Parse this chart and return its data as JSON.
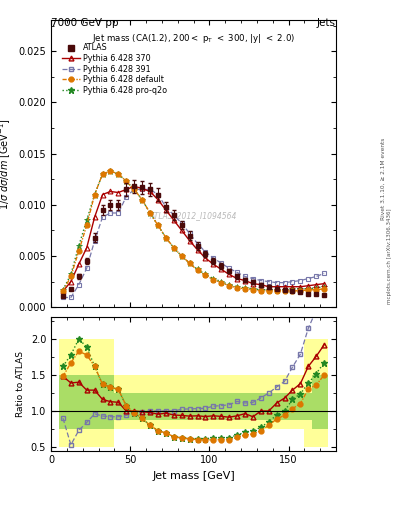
{
  "title_top_left": "7000 GeV pp",
  "title_top_right": "Jets",
  "subtitle": "Jet mass (CA(1.2), 200< p_{T} < 300, |y| < 2.0)",
  "watermark": "ATLAS_2012_I1094564",
  "ylabel_main": "1/σ dσ/dm [GeV⁻¹]",
  "ylabel_ratio": "Ratio to ATLAS",
  "xlabel": "Jet mass [GeV]",
  "x_data": [
    7.5,
    12.5,
    17.5,
    22.5,
    27.5,
    32.5,
    37.5,
    42.5,
    47.5,
    52.5,
    57.5,
    62.5,
    67.5,
    72.5,
    77.5,
    82.5,
    87.5,
    92.5,
    97.5,
    102.5,
    107.5,
    112.5,
    117.5,
    122.5,
    127.5,
    132.5,
    137.5,
    142.5,
    147.5,
    152.5,
    157.5,
    162.5,
    167.5,
    172.5
  ],
  "atlas_y": [
    0.00105,
    0.0018,
    0.003,
    0.0045,
    0.0068,
    0.0095,
    0.01,
    0.01,
    0.0115,
    0.0118,
    0.0117,
    0.0115,
    0.011,
    0.0098,
    0.009,
    0.008,
    0.007,
    0.006,
    0.0052,
    0.0045,
    0.004,
    0.0035,
    0.003,
    0.0027,
    0.0025,
    0.0022,
    0.002,
    0.0018,
    0.0017,
    0.00155,
    0.00145,
    0.0013,
    0.00125,
    0.0012
  ],
  "atlas_yerr_lo": [
    0.0001,
    0.0001,
    0.0002,
    0.0003,
    0.0004,
    0.0005,
    0.0005,
    0.0005,
    0.0006,
    0.0006,
    0.0006,
    0.0006,
    0.0006,
    0.0005,
    0.0005,
    0.0004,
    0.0004,
    0.0004,
    0.0003,
    0.0003,
    0.0003,
    0.0002,
    0.0002,
    0.0002,
    0.0002,
    0.0002,
    0.0002,
    0.0001,
    0.0001,
    0.0001,
    0.0001,
    0.0001,
    0.0001,
    0.0001
  ],
  "atlas_yerr_hi": [
    0.0001,
    0.0001,
    0.0002,
    0.0003,
    0.0004,
    0.0005,
    0.0005,
    0.0005,
    0.0006,
    0.0006,
    0.0006,
    0.0006,
    0.0006,
    0.0005,
    0.0005,
    0.0004,
    0.0004,
    0.0004,
    0.0003,
    0.0003,
    0.0003,
    0.0002,
    0.0002,
    0.0002,
    0.0002,
    0.0002,
    0.0002,
    0.0001,
    0.0001,
    0.0001,
    0.0001,
    0.0001,
    0.0001,
    0.0001
  ],
  "py370_y": [
    0.00155,
    0.0025,
    0.0042,
    0.0058,
    0.0088,
    0.011,
    0.0113,
    0.0112,
    0.0115,
    0.0118,
    0.0116,
    0.0113,
    0.0105,
    0.0095,
    0.0085,
    0.0075,
    0.0065,
    0.0056,
    0.0048,
    0.0042,
    0.0037,
    0.0032,
    0.0028,
    0.0026,
    0.0023,
    0.0022,
    0.002,
    0.002,
    0.002,
    0.002,
    0.002,
    0.0021,
    0.0022,
    0.0023
  ],
  "py391_y": [
    0.00095,
    0.00095,
    0.0022,
    0.0038,
    0.0065,
    0.0088,
    0.0092,
    0.0092,
    0.0108,
    0.0115,
    0.0115,
    0.0115,
    0.011,
    0.0098,
    0.009,
    0.0082,
    0.0072,
    0.0062,
    0.0054,
    0.0048,
    0.0043,
    0.0038,
    0.0034,
    0.003,
    0.0028,
    0.0026,
    0.0025,
    0.0024,
    0.0024,
    0.0025,
    0.0026,
    0.0028,
    0.003,
    0.0033
  ],
  "pydef_y": [
    0.00155,
    0.003,
    0.0055,
    0.008,
    0.011,
    0.013,
    0.0133,
    0.013,
    0.0123,
    0.0115,
    0.0105,
    0.0092,
    0.008,
    0.0068,
    0.0058,
    0.005,
    0.0043,
    0.0036,
    0.0031,
    0.0027,
    0.0024,
    0.0021,
    0.0019,
    0.0018,
    0.0017,
    0.0016,
    0.0016,
    0.0016,
    0.0016,
    0.0016,
    0.0016,
    0.0017,
    0.0017,
    0.0018
  ],
  "pyproq2o_y": [
    0.0017,
    0.0032,
    0.006,
    0.0085,
    0.011,
    0.013,
    0.0133,
    0.013,
    0.0123,
    0.0115,
    0.0105,
    0.0092,
    0.008,
    0.0068,
    0.0058,
    0.005,
    0.0043,
    0.0037,
    0.0032,
    0.0028,
    0.0025,
    0.0022,
    0.002,
    0.0019,
    0.0018,
    0.0017,
    0.0017,
    0.0017,
    0.0017,
    0.0018,
    0.0018,
    0.0018,
    0.0019,
    0.002
  ],
  "atlas_color": "#4a0a0a",
  "py370_color": "#aa0000",
  "py391_color": "#7777aa",
  "pydef_color": "#dd7700",
  "pyproq2o_color": "#228822",
  "xlim": [
    0,
    180
  ],
  "ylim_main": [
    0,
    0.028
  ],
  "ylim_ratio": [
    0.45,
    2.3
  ],
  "ratio_py370": [
    1.48,
    1.39,
    1.4,
    1.29,
    1.29,
    1.16,
    1.13,
    1.12,
    1.0,
    1.0,
    0.99,
    0.98,
    0.955,
    0.97,
    0.944,
    0.938,
    0.929,
    0.933,
    0.923,
    0.933,
    0.925,
    0.914,
    0.933,
    0.963,
    0.92,
    1.0,
    1.0,
    1.11,
    1.18,
    1.29,
    1.38,
    1.62,
    1.76,
    1.92
  ],
  "ratio_py391": [
    0.9,
    0.53,
    0.73,
    0.84,
    0.96,
    0.93,
    0.92,
    0.92,
    0.94,
    0.975,
    0.983,
    1.0,
    1.0,
    1.0,
    1.0,
    1.025,
    1.029,
    1.033,
    1.038,
    1.067,
    1.075,
    1.086,
    1.133,
    1.111,
    1.12,
    1.182,
    1.25,
    1.333,
    1.412,
    1.61,
    1.79,
    2.15,
    2.4,
    2.75
  ],
  "ratio_pydef": [
    1.48,
    1.67,
    1.83,
    1.78,
    1.62,
    1.37,
    1.33,
    1.3,
    1.07,
    0.975,
    0.897,
    0.8,
    0.727,
    0.694,
    0.644,
    0.625,
    0.614,
    0.6,
    0.596,
    0.6,
    0.6,
    0.6,
    0.633,
    0.667,
    0.68,
    0.727,
    0.8,
    0.889,
    0.941,
    1.032,
    1.103,
    1.308,
    1.36,
    1.5
  ],
  "ratio_pyproq2o": [
    1.62,
    1.78,
    2.0,
    1.89,
    1.62,
    1.37,
    1.33,
    1.3,
    1.07,
    0.975,
    0.897,
    0.8,
    0.727,
    0.694,
    0.644,
    0.625,
    0.614,
    0.617,
    0.615,
    0.622,
    0.625,
    0.629,
    0.667,
    0.704,
    0.72,
    0.773,
    0.85,
    0.944,
    1.0,
    1.16,
    1.24,
    1.385,
    1.52,
    1.67
  ],
  "band_yellow_lo": [
    0.5,
    0.5,
    0.5,
    0.5,
    0.5,
    0.5,
    0.5,
    0.75,
    0.75,
    0.75,
    0.75,
    0.75,
    0.75,
    0.75,
    0.75,
    0.75,
    0.75,
    0.75,
    0.75,
    0.75,
    0.75,
    0.75,
    0.75,
    0.75,
    0.75,
    0.75,
    0.75,
    0.75,
    0.75,
    0.75,
    0.75,
    0.5,
    0.5,
    0.5
  ],
  "band_yellow_hi": [
    2.0,
    2.0,
    2.0,
    2.0,
    2.0,
    2.0,
    2.0,
    1.5,
    1.5,
    1.5,
    1.5,
    1.5,
    1.5,
    1.5,
    1.5,
    1.5,
    1.5,
    1.5,
    1.5,
    1.5,
    1.5,
    1.5,
    1.5,
    1.5,
    1.5,
    1.5,
    1.5,
    1.5,
    1.5,
    1.5,
    1.5,
    2.0,
    2.0,
    2.0
  ],
  "band_green_lo": [
    0.75,
    0.75,
    0.75,
    0.75,
    0.75,
    0.75,
    0.75,
    0.875,
    0.875,
    0.875,
    0.875,
    0.875,
    0.875,
    0.875,
    0.875,
    0.875,
    0.875,
    0.875,
    0.875,
    0.875,
    0.875,
    0.875,
    0.875,
    0.875,
    0.875,
    0.875,
    0.875,
    0.875,
    0.875,
    0.875,
    0.875,
    0.875,
    0.75,
    0.75
  ],
  "band_green_hi": [
    1.5,
    1.5,
    1.5,
    1.5,
    1.5,
    1.5,
    1.5,
    1.25,
    1.25,
    1.25,
    1.25,
    1.25,
    1.25,
    1.25,
    1.25,
    1.25,
    1.25,
    1.25,
    1.25,
    1.25,
    1.25,
    1.25,
    1.25,
    1.25,
    1.25,
    1.25,
    1.25,
    1.25,
    1.25,
    1.25,
    1.25,
    1.25,
    1.5,
    1.5
  ]
}
